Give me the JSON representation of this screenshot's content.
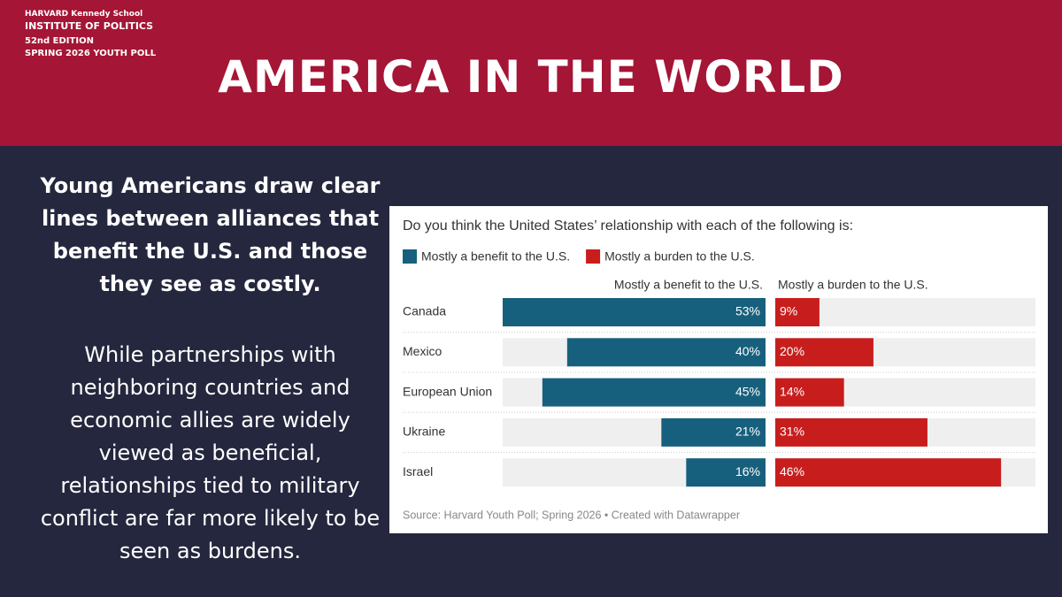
{
  "header": {
    "school": "HARVARD Kennedy School",
    "institute": "INSTITUTE OF POLITICS",
    "edition": "52nd EDITION",
    "poll": "SPRING 2026 YOUTH POLL",
    "title": "AMERICA IN THE WORLD"
  },
  "text": {
    "headline": "Young Americans draw clear lines between alliances that benefit the U.S. and those they see as costly.",
    "body": "While partnerships with neighboring countries and economic allies are widely viewed as beneficial, relationships tied to military conflict are far more likely to be seen as burdens."
  },
  "chart_data": {
    "type": "split-bar",
    "title": "Do you think the United States’ relationship with each of the following is:",
    "categories": [
      "Canada",
      "Mexico",
      "European Union",
      "Ukraine",
      "Israel"
    ],
    "series": [
      {
        "name": "Mostly a benefit to the U.S.",
        "color": "#17607d",
        "values": [
          53,
          40,
          45,
          21,
          16
        ],
        "value_labels": [
          "53%",
          "40%",
          "45%",
          "21%",
          "16%"
        ]
      },
      {
        "name": "Mostly a burden to the U.S.",
        "color": "#c71e1d",
        "values": [
          9,
          20,
          14,
          31,
          46
        ],
        "value_labels": [
          "9%",
          "20%",
          "14%",
          "31%",
          "46%"
        ]
      }
    ],
    "xlim": [
      0,
      53
    ],
    "source": "Source: Harvard Youth Poll; Spring 2026 • Created with Datawrapper"
  }
}
